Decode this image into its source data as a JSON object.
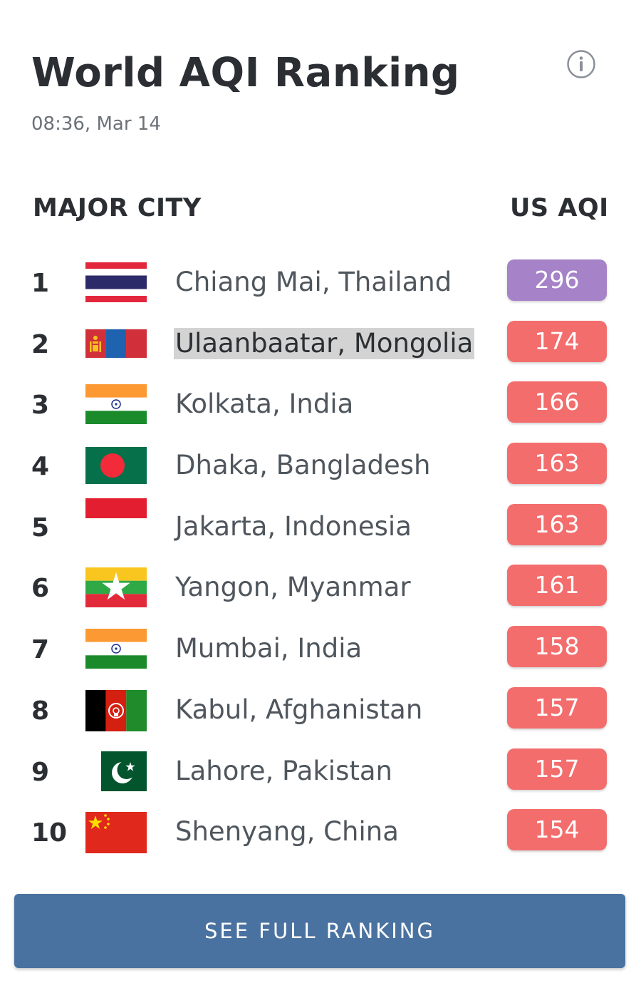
{
  "header": {
    "title": "World AQI Ranking",
    "timestamp": "08:36, Mar 14",
    "info_icon": "info-circle-icon"
  },
  "columns": {
    "city": "MAJOR CITY",
    "aqi": "US AQI"
  },
  "colors": {
    "hazardous_purple": "#a682c9",
    "unhealthy_red": "#f36d6d",
    "button_blue": "#4a72a0",
    "highlight_gray": "#d3d3d3"
  },
  "rankings": [
    {
      "rank": "1",
      "city": "Chiang Mai, Thailand",
      "aqi": "296",
      "flag": "thailand-flag",
      "color": "#a682c9",
      "highlighted": false
    },
    {
      "rank": "2",
      "city": "Ulaanbaatar, Mongolia",
      "aqi": "174",
      "flag": "mongolia-flag",
      "color": "#f36d6d",
      "highlighted": true
    },
    {
      "rank": "3",
      "city": "Kolkata, India",
      "aqi": "166",
      "flag": "india-flag",
      "color": "#f36d6d",
      "highlighted": false
    },
    {
      "rank": "4",
      "city": "Dhaka, Bangladesh",
      "aqi": "163",
      "flag": "bangladesh-flag",
      "color": "#f36d6d",
      "highlighted": false
    },
    {
      "rank": "5",
      "city": "Jakarta, Indonesia",
      "aqi": "163",
      "flag": "indonesia-flag",
      "color": "#f36d6d",
      "highlighted": false
    },
    {
      "rank": "6",
      "city": "Yangon, Myanmar",
      "aqi": "161",
      "flag": "myanmar-flag",
      "color": "#f36d6d",
      "highlighted": false
    },
    {
      "rank": "7",
      "city": "Mumbai, India",
      "aqi": "158",
      "flag": "india-flag",
      "color": "#f36d6d",
      "highlighted": false
    },
    {
      "rank": "8",
      "city": "Kabul, Afghanistan",
      "aqi": "157",
      "flag": "afghanistan-flag",
      "color": "#f36d6d",
      "highlighted": false
    },
    {
      "rank": "9",
      "city": "Lahore, Pakistan",
      "aqi": "157",
      "flag": "pakistan-flag",
      "color": "#f36d6d",
      "highlighted": false
    },
    {
      "rank": "10",
      "city": "Shenyang, China",
      "aqi": "154",
      "flag": "china-flag",
      "color": "#f36d6d",
      "highlighted": false
    }
  ],
  "footer": {
    "button_label": "SEE FULL RANKING"
  }
}
